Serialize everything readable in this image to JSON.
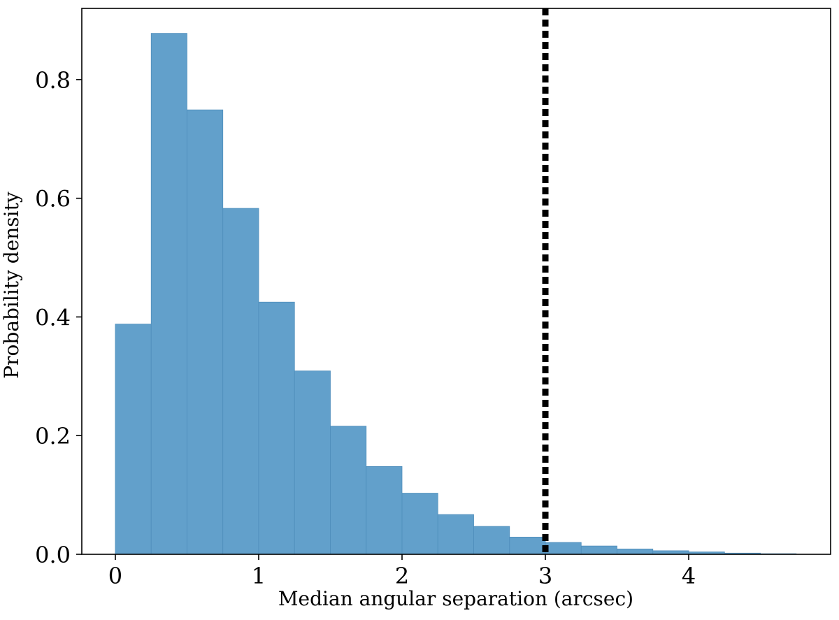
{
  "chart_data": {
    "type": "histogram",
    "xlabel": "Median angular separation (arcsec)",
    "ylabel": "Probability density",
    "bins": [
      0,
      0.25,
      0.5,
      0.75,
      1,
      1.25,
      1.5,
      1.75,
      2,
      2.25,
      2.5,
      2.75,
      3,
      3.25,
      3.5,
      3.75,
      4,
      4.25,
      4.5,
      4.75
    ],
    "values": [
      0.388,
      0.878,
      0.749,
      0.583,
      0.425,
      0.309,
      0.216,
      0.148,
      0.103,
      0.067,
      0.047,
      0.029,
      0.02,
      0.014,
      0.009,
      0.006,
      0.004,
      0.002,
      0.001
    ],
    "color": "#62a0cb",
    "vline": 3,
    "vline_color": "#000000",
    "xlim": [
      -0.234,
      4.99
    ],
    "ylim": [
      0,
      0.92
    ],
    "xticks": [
      0,
      1,
      2,
      3,
      4
    ],
    "yticks": [
      {
        "value": 0,
        "label": "0.0"
      },
      0.2,
      0.4,
      0.6,
      0.8
    ]
  }
}
